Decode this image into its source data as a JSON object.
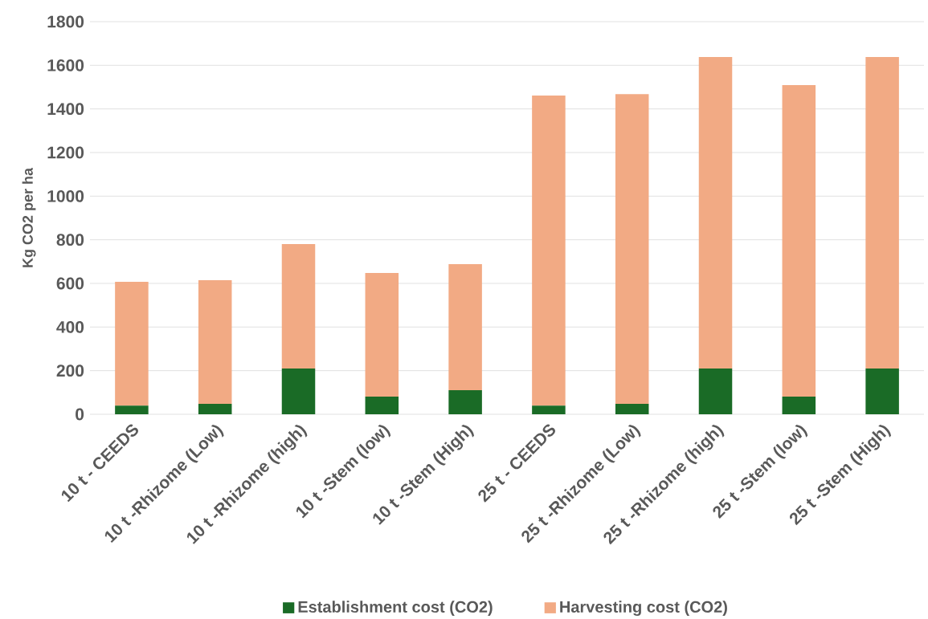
{
  "chart_data": {
    "type": "bar",
    "stacked": true,
    "ylabel": "Kg CO2 per ha",
    "categories": [
      "10 t - CEEDS",
      "10 t -Rhizome (Low)",
      "10 t -Rhizome (high)",
      "10 t -Stem (low)",
      "10 t -Stem (High)",
      "25 t - CEEDS",
      "25 t -Rhizome (Low)",
      "25 t -Rhizome (high)",
      "25 t -Stem (low)",
      "25 t -Stem (High)"
    ],
    "series": [
      {
        "name": "Establishment cost (CO2)",
        "color": "#1a6b26",
        "values": [
          40,
          48,
          210,
          81,
          110,
          40,
          48,
          210,
          81,
          210
        ]
      },
      {
        "name": "Harvesting cost (CO2)",
        "color": "#f2aa84",
        "values": [
          567,
          567,
          570,
          567,
          578,
          1421,
          1420,
          1428,
          1428,
          1428
        ]
      }
    ],
    "ylim": [
      0,
      1800
    ],
    "yticks": [
      0,
      200,
      400,
      600,
      800,
      1000,
      1200,
      1400,
      1600,
      1800
    ],
    "grid": "y",
    "legend": "bottom"
  }
}
